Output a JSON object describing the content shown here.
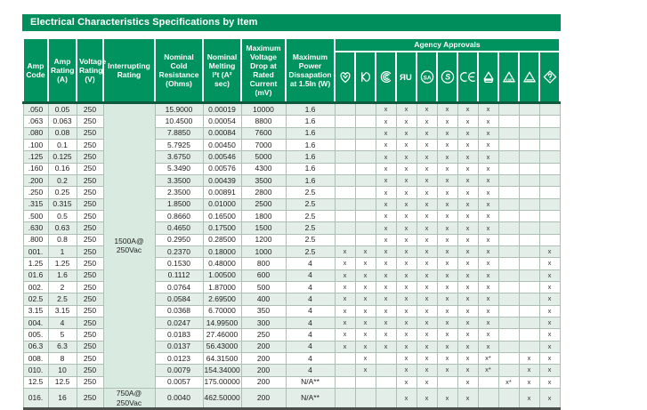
{
  "title": "Electrical Characteristics Specifications by Item",
  "columns": {
    "amp_code": "Amp Code",
    "amp_rating": "Amp Rating (A)",
    "voltage_rating": "Voltage Rating (V)",
    "interrupting_rating": "Interrupting Rating",
    "cold_resistance": "Nominal Cold Resistance (Ohms)",
    "melting_i2t": "Nominal Melting I²t (A² sec)",
    "voltage_drop": "Maximum Voltage Drop at Rated Current (mV)",
    "power_dissipation": "Maximum Power Dissapation at 1.5In (W)",
    "agency_approvals": "Agency Approvals"
  },
  "agencies": [
    "pse",
    "kc",
    "ccc",
    "ul",
    "csa",
    "semko",
    "ce",
    "vde-gs",
    "vde",
    "triangle",
    "diamond"
  ],
  "interrupting_rating": {
    "main": "1500A@\n250Vac",
    "last": "750A@\n250Vac"
  },
  "colors": {
    "header_green": "#00925F",
    "title_green": "#008E5C",
    "band_row": "#E4EEE8",
    "interrupting_bg": "#D9EAE0",
    "header_divider": "#0D5A3D"
  },
  "rows": [
    {
      "code": ".050",
      "amp": "0.05",
      "volt": "250",
      "res": "15.9000",
      "melt": "0.00019",
      "drop": "10000",
      "power": "1.6",
      "marks": [
        "",
        "",
        "x",
        "x",
        "x",
        "x",
        "x",
        "x",
        "",
        "",
        ""
      ]
    },
    {
      "code": ".063",
      "amp": "0.063",
      "volt": "250",
      "res": "10.4500",
      "melt": "0.00054",
      "drop": "8800",
      "power": "1.6",
      "marks": [
        "",
        "",
        "x",
        "x",
        "x",
        "x",
        "x",
        "x",
        "",
        "",
        ""
      ]
    },
    {
      "code": ".080",
      "amp": "0.08",
      "volt": "250",
      "res": "7.8850",
      "melt": "0.00084",
      "drop": "7600",
      "power": "1.6",
      "marks": [
        "",
        "",
        "x",
        "x",
        "x",
        "x",
        "x",
        "x",
        "",
        "",
        ""
      ]
    },
    {
      "code": ".100",
      "amp": "0.1",
      "volt": "250",
      "res": "5.7925",
      "melt": "0.00450",
      "drop": "7000",
      "power": "1.6",
      "marks": [
        "",
        "",
        "x",
        "x",
        "x",
        "x",
        "x",
        "x",
        "",
        "",
        ""
      ]
    },
    {
      "code": ".125",
      "amp": "0.125",
      "volt": "250",
      "res": "3.6750",
      "melt": "0.00546",
      "drop": "5000",
      "power": "1.6",
      "marks": [
        "",
        "",
        "x",
        "x",
        "x",
        "x",
        "x",
        "x",
        "",
        "",
        ""
      ]
    },
    {
      "code": ".160",
      "amp": "0.16",
      "volt": "250",
      "res": "5.3490",
      "melt": "0.00576",
      "drop": "4300",
      "power": "1.6",
      "marks": [
        "",
        "",
        "x",
        "x",
        "x",
        "x",
        "x",
        "x",
        "",
        "",
        ""
      ]
    },
    {
      "code": ".200",
      "amp": "0.2",
      "volt": "250",
      "res": "3.3500",
      "melt": "0.00439",
      "drop": "3500",
      "power": "1.6",
      "marks": [
        "",
        "",
        "x",
        "x",
        "x",
        "x",
        "x",
        "x",
        "",
        "",
        ""
      ]
    },
    {
      "code": ".250",
      "amp": "0.25",
      "volt": "250",
      "res": "2.3500",
      "melt": "0.00891",
      "drop": "2800",
      "power": "2.5",
      "marks": [
        "",
        "",
        "x",
        "x",
        "x",
        "x",
        "x",
        "x",
        "",
        "",
        ""
      ]
    },
    {
      "code": ".315",
      "amp": "0.315",
      "volt": "250",
      "res": "1.8500",
      "melt": "0.01000",
      "drop": "2500",
      "power": "2.5",
      "marks": [
        "",
        "",
        "x",
        "x",
        "x",
        "x",
        "x",
        "x",
        "",
        "",
        ""
      ]
    },
    {
      "code": ".500",
      "amp": "0.5",
      "volt": "250",
      "res": "0.8660",
      "melt": "0.16500",
      "drop": "1800",
      "power": "2.5",
      "marks": [
        "",
        "",
        "x",
        "x",
        "x",
        "x",
        "x",
        "x",
        "",
        "",
        ""
      ]
    },
    {
      "code": ".630",
      "amp": "0.63",
      "volt": "250",
      "res": "0.4650",
      "melt": "0.17500",
      "drop": "1500",
      "power": "2.5",
      "marks": [
        "",
        "",
        "x",
        "x",
        "x",
        "x",
        "x",
        "x",
        "",
        "",
        ""
      ]
    },
    {
      "code": ".800",
      "amp": "0.8",
      "volt": "250",
      "res": "0.2950",
      "melt": "0.28500",
      "drop": "1200",
      "power": "2.5",
      "marks": [
        "",
        "",
        "x",
        "x",
        "x",
        "x",
        "x",
        "x",
        "",
        "",
        ""
      ]
    },
    {
      "code": "001.",
      "amp": "1",
      "volt": "250",
      "res": "0.2370",
      "melt": "0.18000",
      "drop": "1000",
      "power": "2.5",
      "marks": [
        "x",
        "x",
        "x",
        "x",
        "x",
        "x",
        "x",
        "x",
        "",
        "",
        "x"
      ]
    },
    {
      "code": "1.25",
      "amp": "1.25",
      "volt": "250",
      "res": "0.1530",
      "melt": "0.48000",
      "drop": "800",
      "power": "4",
      "marks": [
        "x",
        "x",
        "x",
        "x",
        "x",
        "x",
        "x",
        "x",
        "",
        "",
        "x"
      ]
    },
    {
      "code": "01.6",
      "amp": "1.6",
      "volt": "250",
      "res": "0.1112",
      "melt": "1.00500",
      "drop": "600",
      "power": "4",
      "marks": [
        "x",
        "x",
        "x",
        "x",
        "x",
        "x",
        "x",
        "x",
        "",
        "",
        "x"
      ]
    },
    {
      "code": "002.",
      "amp": "2",
      "volt": "250",
      "res": "0.0764",
      "melt": "1.87000",
      "drop": "500",
      "power": "4",
      "marks": [
        "x",
        "x",
        "x",
        "x",
        "x",
        "x",
        "x",
        "x",
        "",
        "",
        "x"
      ]
    },
    {
      "code": "02.5",
      "amp": "2.5",
      "volt": "250",
      "res": "0.0584",
      "melt": "2.69500",
      "drop": "400",
      "power": "4",
      "marks": [
        "x",
        "x",
        "x",
        "x",
        "x",
        "x",
        "x",
        "x",
        "",
        "",
        "x"
      ]
    },
    {
      "code": "3.15",
      "amp": "3.15",
      "volt": "250",
      "res": "0.0368",
      "melt": "6.70000",
      "drop": "350",
      "power": "4",
      "marks": [
        "x",
        "x",
        "x",
        "x",
        "x",
        "x",
        "x",
        "x",
        "",
        "",
        "x"
      ]
    },
    {
      "code": "004.",
      "amp": "4",
      "volt": "250",
      "res": "0.0247",
      "melt": "14.99500",
      "drop": "300",
      "power": "4",
      "marks": [
        "x",
        "x",
        "x",
        "x",
        "x",
        "x",
        "x",
        "x",
        "",
        "",
        "x"
      ]
    },
    {
      "code": "005.",
      "amp": "5",
      "volt": "250",
      "res": "0.0183",
      "melt": "27.46000",
      "drop": "250",
      "power": "4",
      "marks": [
        "x",
        "x",
        "x",
        "x",
        "x",
        "x",
        "x",
        "x",
        "",
        "",
        "x"
      ]
    },
    {
      "code": "06.3",
      "amp": "6.3",
      "volt": "250",
      "res": "0.0137",
      "melt": "56.43000",
      "drop": "200",
      "power": "4",
      "marks": [
        "x",
        "x",
        "x",
        "x",
        "x",
        "x",
        "x",
        "x",
        "",
        "",
        "x"
      ]
    },
    {
      "code": "008.",
      "amp": "8",
      "volt": "250",
      "res": "0.0123",
      "melt": "64.31500",
      "drop": "200",
      "power": "4",
      "marks": [
        "",
        "x",
        "",
        "x",
        "x",
        "x",
        "x",
        "x*",
        "",
        "x",
        "x"
      ]
    },
    {
      "code": "010.",
      "amp": "10",
      "volt": "250",
      "res": "0.0079",
      "melt": "154.34000",
      "drop": "200",
      "power": "4",
      "marks": [
        "",
        "x",
        "",
        "x",
        "x",
        "x",
        "x",
        "x*",
        "",
        "x",
        "x"
      ]
    },
    {
      "code": "12.5",
      "amp": "12.5",
      "volt": "250",
      "res": "0.0057",
      "melt": "175.00000",
      "drop": "200",
      "power": "N/A**",
      "marks": [
        "",
        "",
        "",
        "x",
        "x",
        "",
        "x",
        "",
        "x*",
        "x",
        "x"
      ]
    },
    {
      "code": "016.",
      "amp": "16",
      "volt": "250",
      "res": "0.0040",
      "melt": "462.50000",
      "drop": "200",
      "power": "N/A**",
      "marks": [
        "",
        "",
        "",
        "x",
        "x",
        "x",
        "x",
        "",
        "",
        "x",
        "x"
      ]
    }
  ]
}
